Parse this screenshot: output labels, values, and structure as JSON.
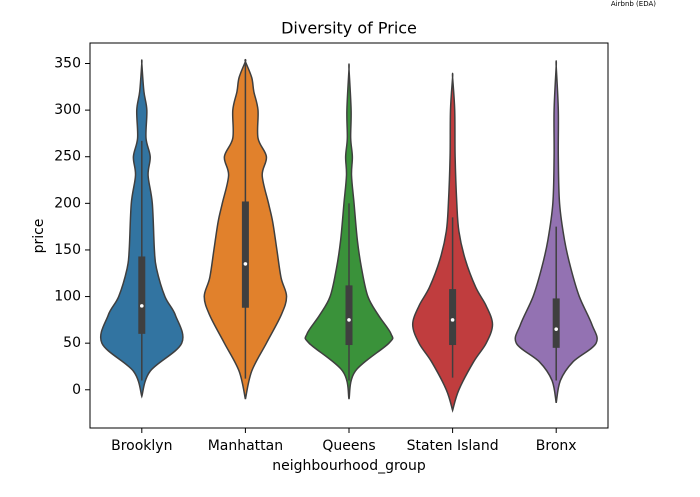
{
  "corner_note": "Airbnb (EDA)",
  "chart_data": {
    "type": "violin",
    "title": "Diversity of Price",
    "xlabel": "neighbourhood_group",
    "ylabel": "price",
    "categories": [
      "Brooklyn",
      "Manhattan",
      "Queens",
      "Staten Island",
      "Bronx"
    ],
    "ylim": [
      -41,
      372
    ],
    "yticks": [
      0,
      50,
      100,
      150,
      200,
      250,
      300,
      350
    ],
    "violins": [
      {
        "color": "#3274a1",
        "whislo": 10,
        "q1": 60,
        "median": 90,
        "q3": 143,
        "whishi": 267,
        "density": {
          "y": [
            -7,
            20,
            50,
            80,
            100,
            130,
            150,
            200,
            230,
            250,
            270,
            300,
            320,
            350
          ],
          "width": [
            0,
            0.2,
            0.95,
            0.8,
            0.55,
            0.35,
            0.3,
            0.25,
            0.15,
            0.2,
            0.1,
            0.12,
            0.05,
            0
          ]
        }
      },
      {
        "color": "#e1812c",
        "whislo": 12,
        "q1": 88,
        "median": 135,
        "q3": 202,
        "whishi": 350,
        "density": {
          "y": [
            -10,
            20,
            50,
            80,
            100,
            120,
            150,
            180,
            200,
            230,
            250,
            270,
            300,
            320,
            335,
            352
          ],
          "width": [
            0,
            0.15,
            0.5,
            0.85,
            0.98,
            0.85,
            0.75,
            0.65,
            0.55,
            0.4,
            0.5,
            0.3,
            0.3,
            0.2,
            0.15,
            0
          ]
        }
      },
      {
        "color": "#3a923a",
        "whislo": 10,
        "q1": 48,
        "median": 75,
        "q3": 112,
        "whishi": 200,
        "density": {
          "y": [
            -10,
            20,
            50,
            60,
            80,
            100,
            130,
            160,
            200,
            230,
            250,
            270,
            300,
            344
          ],
          "width": [
            0,
            0.15,
            0.95,
            1.0,
            0.7,
            0.45,
            0.3,
            0.2,
            0.12,
            0.06,
            0.08,
            0.04,
            0.05,
            0
          ]
        }
      },
      {
        "color": "#c03d3e",
        "whislo": 13,
        "q1": 48,
        "median": 75,
        "q3": 108,
        "whishi": 185,
        "density": {
          "y": [
            -22,
            0,
            30,
            50,
            70,
            90,
            110,
            140,
            170,
            200,
            250,
            300,
            335
          ],
          "width": [
            0,
            0.15,
            0.5,
            0.8,
            0.95,
            0.8,
            0.55,
            0.3,
            0.15,
            0.1,
            0.06,
            0.05,
            0
          ]
        }
      },
      {
        "color": "#9372b2",
        "whislo": 10,
        "q1": 45,
        "median": 65,
        "q3": 98,
        "whishi": 175,
        "density": {
          "y": [
            -14,
            10,
            30,
            50,
            70,
            100,
            130,
            160,
            200,
            250,
            300,
            347
          ],
          "width": [
            0,
            0.1,
            0.4,
            0.95,
            0.85,
            0.55,
            0.35,
            0.2,
            0.08,
            0.05,
            0.05,
            0
          ]
        }
      }
    ]
  }
}
